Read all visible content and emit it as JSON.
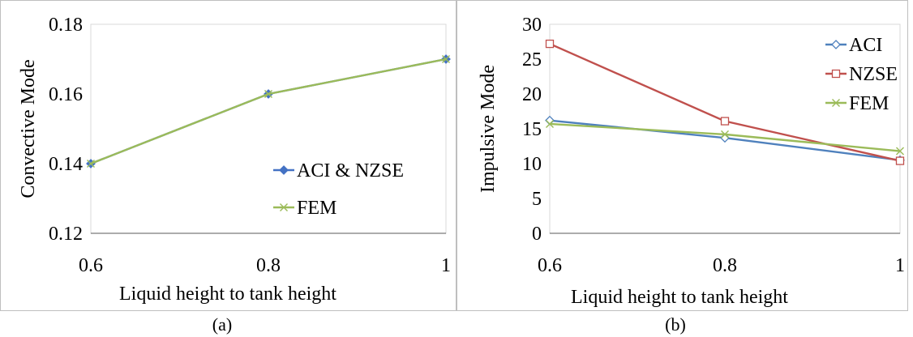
{
  "chart_data": [
    {
      "type": "line",
      "caption": "(a)",
      "xlabel": "Liquid height to tank height",
      "ylabel": "Convective Mode",
      "x": [
        0.6,
        0.8,
        1
      ],
      "xticks": [
        "0.6",
        "0.8",
        "1"
      ],
      "yticks": [
        "0.12",
        "0.14",
        "0.16",
        "0.18"
      ],
      "ylim": [
        0.12,
        0.18
      ],
      "legend_position": "bottom-right",
      "grid": false,
      "series": [
        {
          "name": "ACI & NZSE",
          "values": [
            0.14,
            0.16,
            0.17
          ],
          "color": "#4472c4",
          "marker": "diamond-filled"
        },
        {
          "name": "FEM",
          "values": [
            0.14,
            0.16,
            0.17
          ],
          "color": "#9bbb59",
          "marker": "x"
        }
      ]
    },
    {
      "type": "line",
      "caption": "(b)",
      "xlabel": "Liquid height to tank height",
      "ylabel": "Impulsive Mode",
      "x": [
        0.6,
        0.8,
        1
      ],
      "xticks": [
        "0.6",
        "0.8",
        "1"
      ],
      "yticks": [
        "0",
        "5",
        "10",
        "15",
        "20",
        "25",
        "30"
      ],
      "ylim": [
        0,
        30
      ],
      "legend_position": "top-right",
      "grid": false,
      "series": [
        {
          "name": "ACI",
          "values": [
            16.2,
            13.7,
            10.5
          ],
          "color": "#4f81bd",
          "marker": "diamond-open"
        },
        {
          "name": "NZSE",
          "values": [
            27.2,
            16.1,
            10.4
          ],
          "color": "#c0504d",
          "marker": "square-open"
        },
        {
          "name": "FEM",
          "values": [
            15.7,
            14.2,
            11.8
          ],
          "color": "#9bbb59",
          "marker": "x"
        }
      ]
    }
  ]
}
